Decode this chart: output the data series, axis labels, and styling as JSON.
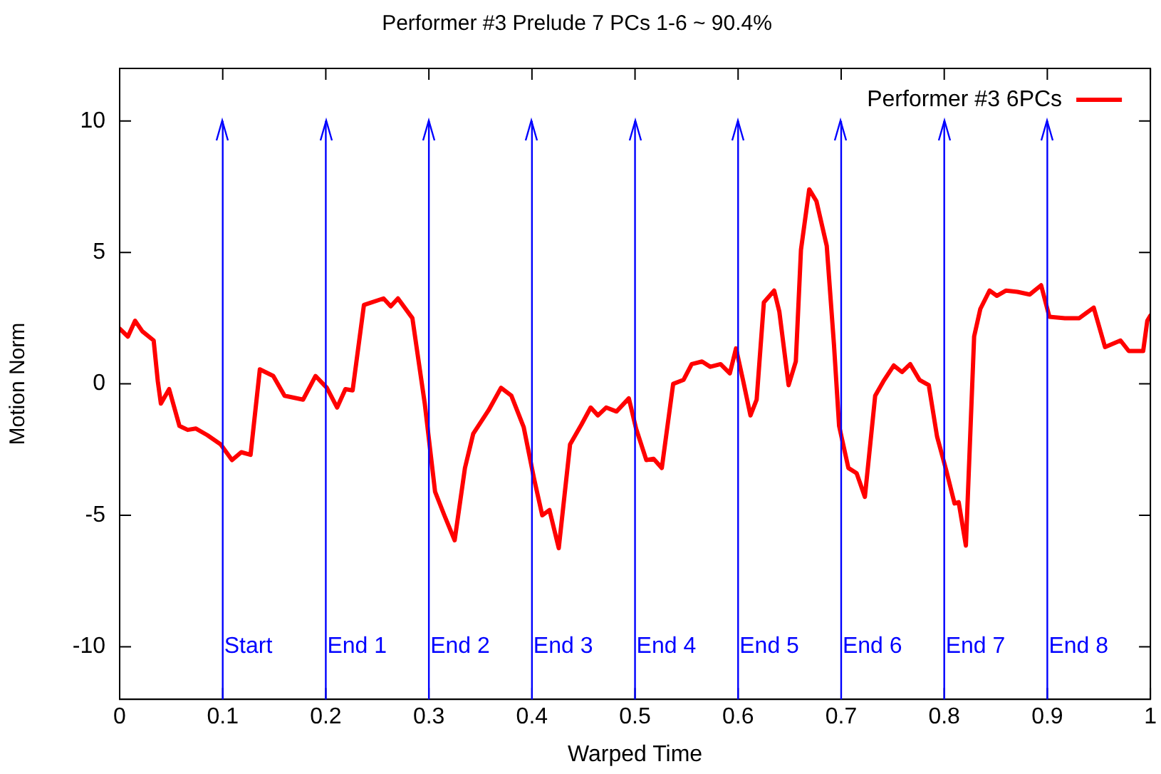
{
  "chart_data": {
    "type": "line",
    "title": "Performer #3 Prelude 7 PCs 1-6 ~ 90.4%",
    "xlabel": "Warped Time",
    "ylabel": "Motion Norm",
    "x": [
      0,
      0.008,
      0.015,
      0.022,
      0.033,
      0.037,
      0.04,
      0.048,
      0.058,
      0.066,
      0.074,
      0.085,
      0.098,
      0.109,
      0.118,
      0.127,
      0.136,
      0.149,
      0.16,
      0.178,
      0.19,
      0.201,
      0.211,
      0.219,
      0.226,
      0.237,
      0.256,
      0.263,
      0.27,
      0.284,
      0.296,
      0.306,
      0.315,
      0.325,
      0.335,
      0.343,
      0.358,
      0.37,
      0.38,
      0.392,
      0.402,
      0.41,
      0.417,
      0.426,
      0.437,
      0.448,
      0.457,
      0.464,
      0.472,
      0.482,
      0.494,
      0.501,
      0.511,
      0.518,
      0.526,
      0.537,
      0.547,
      0.555,
      0.565,
      0.573,
      0.583,
      0.592,
      0.598,
      0.605,
      0.612,
      0.618,
      0.625,
      0.635,
      0.64,
      0.649,
      0.656,
      0.661,
      0.669,
      0.676,
      0.686,
      0.693,
      0.698,
      0.707,
      0.715,
      0.723,
      0.733,
      0.741,
      0.751,
      0.759,
      0.767,
      0.776,
      0.785,
      0.793,
      0.802,
      0.81,
      0.814,
      0.821,
      0.829,
      0.835,
      0.844,
      0.851,
      0.86,
      0.871,
      0.883,
      0.894,
      0.902,
      0.917,
      0.931,
      0.945,
      0.956,
      0.971,
      0.979,
      0.993,
      0.997,
      1.0
    ],
    "series": [
      {
        "name": "Performer #3 6PCs",
        "color": "#ff0000",
        "values": [
          2.1,
          1.8,
          2.4,
          2.0,
          1.65,
          0.1,
          -0.75,
          -0.2,
          -1.6,
          -1.75,
          -1.7,
          -1.95,
          -2.3,
          -2.9,
          -2.6,
          -2.7,
          0.55,
          0.3,
          -0.45,
          -0.6,
          0.3,
          -0.15,
          -0.9,
          -0.2,
          -0.25,
          3.0,
          3.25,
          2.95,
          3.25,
          2.5,
          -0.75,
          -4.1,
          -5.0,
          -5.95,
          -3.2,
          -1.9,
          -1.0,
          -0.15,
          -0.45,
          -1.65,
          -3.6,
          -5.0,
          -4.8,
          -6.25,
          -2.3,
          -1.55,
          -0.9,
          -1.2,
          -0.9,
          -1.05,
          -0.55,
          -1.7,
          -2.9,
          -2.85,
          -3.2,
          0.0,
          0.15,
          0.75,
          0.85,
          0.65,
          0.75,
          0.4,
          1.35,
          0.1,
          -1.2,
          -0.6,
          3.1,
          3.55,
          2.75,
          -0.05,
          0.85,
          5.1,
          7.4,
          6.95,
          5.25,
          1.5,
          -1.6,
          -3.2,
          -3.4,
          -4.3,
          -0.45,
          0.1,
          0.7,
          0.45,
          0.75,
          0.15,
          -0.05,
          -2.0,
          -3.3,
          -4.55,
          -4.5,
          -6.15,
          1.8,
          2.85,
          3.55,
          3.35,
          3.55,
          3.5,
          3.4,
          3.75,
          2.55,
          2.5,
          2.5,
          2.9,
          1.4,
          1.65,
          1.25,
          1.25,
          2.4,
          2.6
        ]
      }
    ],
    "xlim": [
      0,
      1
    ],
    "xticks": [
      0,
      0.1,
      0.2,
      0.3,
      0.4,
      0.5,
      0.6,
      0.7,
      0.8,
      0.9,
      1
    ],
    "ylim": [
      -12,
      12
    ],
    "yticks": [
      -10,
      -5,
      0,
      5,
      10
    ],
    "ref_lines": [
      {
        "axis": "x",
        "value": 0.1,
        "label": "Start",
        "color": "#0000ff"
      },
      {
        "axis": "x",
        "value": 0.2,
        "label": "End 1",
        "color": "#0000ff"
      },
      {
        "axis": "x",
        "value": 0.3,
        "label": "End 2",
        "color": "#0000ff"
      },
      {
        "axis": "x",
        "value": 0.4,
        "label": "End 3",
        "color": "#0000ff"
      },
      {
        "axis": "x",
        "value": 0.5,
        "label": "End 4",
        "color": "#0000ff"
      },
      {
        "axis": "x",
        "value": 0.6,
        "label": "End 5",
        "color": "#0000ff"
      },
      {
        "axis": "x",
        "value": 0.7,
        "label": "End 6",
        "color": "#0000ff"
      },
      {
        "axis": "x",
        "value": 0.8,
        "label": "End 7",
        "color": "#0000ff"
      },
      {
        "axis": "x",
        "value": 0.9,
        "label": "End 8",
        "color": "#0000ff"
      }
    ],
    "legend": "top right",
    "grid": false,
    "marker": "none",
    "line_style": "solid"
  }
}
